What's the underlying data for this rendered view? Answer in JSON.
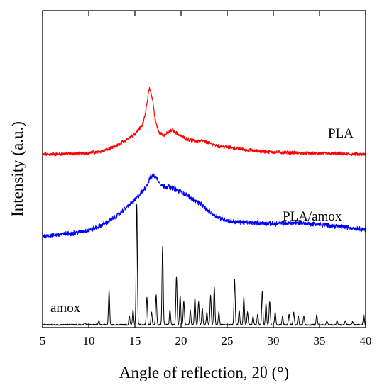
{
  "chart_data": {
    "type": "line",
    "xlabel": "Angle of reflection, 2θ (°)",
    "ylabel": "Intensity (a.u.)",
    "xlim": [
      5,
      40
    ],
    "xticks": [
      5,
      10,
      15,
      20,
      25,
      30,
      35,
      40
    ],
    "y_units": "arbitrary",
    "grid": false,
    "legend": "inline labels beside curves",
    "series": [
      {
        "name": "PLA",
        "color": "#ff0000",
        "baseline": 0.46,
        "points": [
          [
            5,
            0.46
          ],
          [
            7,
            0.465
          ],
          [
            9,
            0.47
          ],
          [
            10,
            0.475
          ],
          [
            11,
            0.48
          ],
          [
            12,
            0.5
          ],
          [
            13,
            0.53
          ],
          [
            14,
            0.58
          ],
          [
            15,
            0.63
          ],
          [
            15.8,
            0.7
          ],
          [
            16.2,
            0.82
          ],
          [
            16.5,
            0.98
          ],
          [
            16.6,
            1.0
          ],
          [
            16.9,
            0.92
          ],
          [
            17.2,
            0.74
          ],
          [
            17.6,
            0.64
          ],
          [
            18.2,
            0.62
          ],
          [
            18.8,
            0.65
          ],
          [
            19.1,
            0.66
          ],
          [
            19.6,
            0.63
          ],
          [
            20.5,
            0.59
          ],
          [
            21.5,
            0.57
          ],
          [
            22.3,
            0.575
          ],
          [
            23,
            0.555
          ],
          [
            24,
            0.53
          ],
          [
            26,
            0.51
          ],
          [
            28,
            0.49
          ],
          [
            30,
            0.48
          ],
          [
            32,
            0.475
          ],
          [
            34,
            0.47
          ],
          [
            36,
            0.47
          ],
          [
            38,
            0.465
          ],
          [
            40,
            0.46
          ]
        ]
      },
      {
        "name": "PLA/amox",
        "color": "#0000ff",
        "baseline": 0.2,
        "points": [
          [
            5,
            0.2
          ],
          [
            6,
            0.205
          ],
          [
            7,
            0.21
          ],
          [
            8,
            0.215
          ],
          [
            9,
            0.225
          ],
          [
            10,
            0.235
          ],
          [
            11,
            0.255
          ],
          [
            12,
            0.285
          ],
          [
            13,
            0.32
          ],
          [
            14,
            0.37
          ],
          [
            15,
            0.42
          ],
          [
            15.8,
            0.47
          ],
          [
            16.3,
            0.51
          ],
          [
            16.7,
            0.56
          ],
          [
            17,
            0.57
          ],
          [
            17.4,
            0.55
          ],
          [
            17.8,
            0.515
          ],
          [
            18.2,
            0.5
          ],
          [
            18.8,
            0.5
          ],
          [
            19.5,
            0.48
          ],
          [
            20.3,
            0.46
          ],
          [
            21,
            0.435
          ],
          [
            22,
            0.4
          ],
          [
            23,
            0.35
          ],
          [
            24,
            0.315
          ],
          [
            25,
            0.295
          ],
          [
            26,
            0.285
          ],
          [
            28,
            0.28
          ],
          [
            30,
            0.275
          ],
          [
            32,
            0.28
          ],
          [
            33,
            0.28
          ],
          [
            35,
            0.27
          ],
          [
            37,
            0.26
          ],
          [
            38.5,
            0.25
          ],
          [
            40,
            0.24
          ]
        ]
      },
      {
        "name": "amox",
        "color": "#000000",
        "baseline": 0.0,
        "peaks": [
          [
            9.6,
            0.01
          ],
          [
            11.1,
            0.02
          ],
          [
            12.2,
            0.16
          ],
          [
            14.4,
            0.04
          ],
          [
            14.8,
            0.07
          ],
          [
            15.2,
            0.57
          ],
          [
            16.3,
            0.13
          ],
          [
            16.8,
            0.06
          ],
          [
            17.3,
            0.14
          ],
          [
            18.0,
            0.37
          ],
          [
            18.8,
            0.07
          ],
          [
            19.5,
            0.23
          ],
          [
            19.9,
            0.14
          ],
          [
            20.3,
            0.11
          ],
          [
            21.0,
            0.07
          ],
          [
            21.5,
            0.13
          ],
          [
            21.9,
            0.11
          ],
          [
            22.3,
            0.08
          ],
          [
            22.8,
            0.06
          ],
          [
            23.2,
            0.14
          ],
          [
            23.6,
            0.18
          ],
          [
            24.1,
            0.06
          ],
          [
            25.8,
            0.21
          ],
          [
            26.3,
            0.07
          ],
          [
            26.8,
            0.13
          ],
          [
            27.2,
            0.06
          ],
          [
            27.8,
            0.04
          ],
          [
            28.3,
            0.05
          ],
          [
            28.8,
            0.16
          ],
          [
            29.2,
            0.1
          ],
          [
            29.6,
            0.11
          ],
          [
            30.2,
            0.06
          ],
          [
            31.0,
            0.04
          ],
          [
            31.7,
            0.05
          ],
          [
            32.2,
            0.06
          ],
          [
            32.7,
            0.04
          ],
          [
            33.3,
            0.04
          ],
          [
            34.7,
            0.05
          ],
          [
            35.8,
            0.02
          ],
          [
            36.9,
            0.02
          ],
          [
            37.8,
            0.02
          ],
          [
            38.6,
            0.015
          ],
          [
            39.8,
            0.05
          ]
        ]
      }
    ]
  }
}
